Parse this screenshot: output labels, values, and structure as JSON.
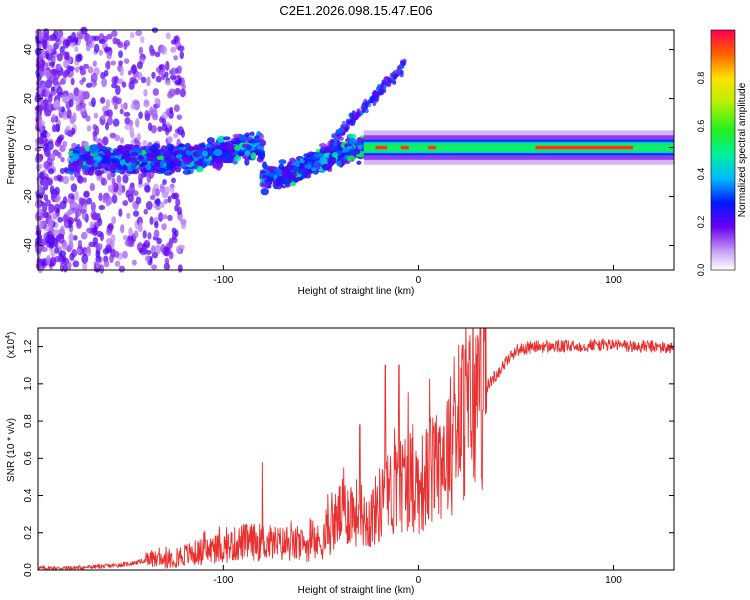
{
  "title": "C2E1.2026.098.15.47.E06",
  "chart_data": [
    {
      "type": "heatmap",
      "title": "C2E1.2026.098.15.47.E06",
      "xlabel": "Height of straight line (km)",
      "ylabel": "Frequency (Hz)",
      "xlim": [
        -195,
        131
      ],
      "ylim": [
        -50,
        48
      ],
      "x_ticks": [
        -100,
        0,
        100
      ],
      "y_ticks": [
        -40,
        -20,
        0,
        20,
        40
      ],
      "description_points": [
        {
          "x": -180,
          "y": -5,
          "amp": 0.3
        },
        {
          "x": -150,
          "y": -6,
          "amp": 0.35
        },
        {
          "x": -120,
          "y": -5,
          "amp": 0.4
        },
        {
          "x": -90,
          "y": 0,
          "amp": 0.45
        },
        {
          "x": -75,
          "y": -12,
          "amp": 0.35
        },
        {
          "x": -60,
          "y": -5,
          "amp": 0.4
        },
        {
          "x": -40,
          "y": 0,
          "amp": 0.5
        },
        {
          "x": -20,
          "y": 0,
          "amp": 0.9
        },
        {
          "x": 10,
          "y": 0,
          "amp": 0.9
        },
        {
          "x": 50,
          "y": -1,
          "amp": 0.5
        },
        {
          "x": 90,
          "y": -2,
          "amp": 0.95
        },
        {
          "x": 125,
          "y": -2,
          "amp": 0.5
        }
      ],
      "colorbar": {
        "label": "Normalized spectral amplitude",
        "range": [
          0,
          1
        ],
        "ticks": [
          0.0,
          0.2,
          0.4,
          0.6,
          0.8
        ]
      }
    },
    {
      "type": "line",
      "xlabel": "Height of straight line (km)",
      "ylabel": "SNR (10 * v/v)",
      "multiplier_label": "(x10",
      "multiplier_exp": "4",
      "multiplier_close": ")",
      "xlim": [
        -195,
        131
      ],
      "ylim": [
        0,
        1.3
      ],
      "x_ticks": [
        -100,
        0,
        100
      ],
      "y_ticks": [
        0.0,
        0.2,
        0.4,
        0.6,
        0.8,
        1.0,
        1.2
      ],
      "series": [
        {
          "name": "SNR",
          "color": "#e83030",
          "x": [
            -195,
            -180,
            -160,
            -150,
            -140,
            -130,
            -120,
            -110,
            -100,
            -90,
            -80,
            -70,
            -60,
            -50,
            -45,
            -40,
            -35,
            -30,
            -25,
            -20,
            -15,
            -10,
            -5,
            0,
            5,
            10,
            15,
            20,
            25,
            30,
            40,
            45,
            50,
            60,
            70,
            80,
            90,
            100,
            110,
            120,
            131
          ],
          "values": [
            0.01,
            0.01,
            0.02,
            0.03,
            0.05,
            0.06,
            0.08,
            0.1,
            0.12,
            0.15,
            0.15,
            0.14,
            0.13,
            0.15,
            0.22,
            0.3,
            0.32,
            0.3,
            0.27,
            0.35,
            0.4,
            0.45,
            0.5,
            0.45,
            0.5,
            0.6,
            0.65,
            0.75,
            0.85,
            0.92,
            1.05,
            1.12,
            1.18,
            1.2,
            1.2,
            1.2,
            1.21,
            1.21,
            1.2,
            1.2,
            1.19
          ]
        }
      ],
      "spikes": [
        {
          "x": -80,
          "value": 0.58
        },
        {
          "x": -30,
          "value": 0.78
        },
        {
          "x": -17,
          "value": 1.1
        },
        {
          "x": -10,
          "value": 1.1
        }
      ]
    }
  ]
}
